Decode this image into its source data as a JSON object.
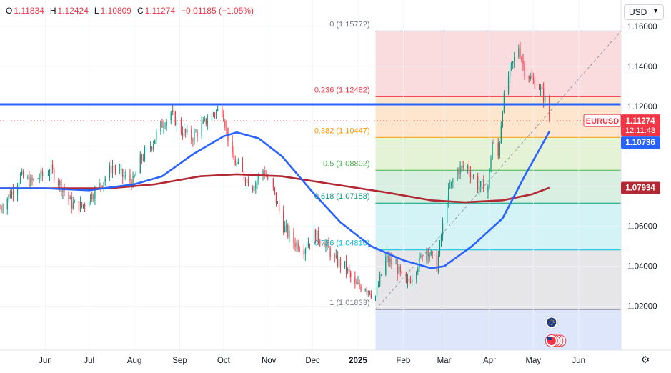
{
  "header": {
    "ohlc": [
      {
        "key": "O",
        "value": "1.11834"
      },
      {
        "key": "H",
        "value": "1.12424"
      },
      {
        "key": "L",
        "value": "1.10809"
      },
      {
        "key": "C",
        "value": "1.11274"
      },
      {
        "key": "",
        "value": "−0.01185 (−1.05%)"
      }
    ],
    "currency": "USD",
    "settings_icon": "gear-icon"
  },
  "colors": {
    "up": "#089981",
    "down": "#f23645",
    "ma_fast": "#2962ff",
    "ma_slow": "#b22833",
    "resistance": "#2962ff"
  },
  "chart_data": {
    "type": "candlestick",
    "symbol": "EURUSD",
    "y_ticks": [
      "1.16000",
      "1.14000",
      "1.12000",
      "1.10000",
      "1.08000",
      "1.06000",
      "1.04000",
      "1.02000"
    ],
    "y_tick_values": [
      1.16,
      1.14,
      1.12,
      1.1,
      1.08,
      1.06,
      1.04,
      1.02
    ],
    "ylim": [
      0.998,
      1.1625
    ],
    "x_ticks": [
      {
        "label": "Jun",
        "date": "2024-06-01",
        "bold": false
      },
      {
        "label": "Jul",
        "date": "2024-07-01",
        "bold": false
      },
      {
        "label": "Aug",
        "date": "2024-08-01",
        "bold": false
      },
      {
        "label": "Sep",
        "date": "2024-09-01",
        "bold": false
      },
      {
        "label": "Oct",
        "date": "2024-10-01",
        "bold": false
      },
      {
        "label": "Nov",
        "date": "2024-11-01",
        "bold": false
      },
      {
        "label": "Dec",
        "date": "2024-12-01",
        "bold": false
      },
      {
        "label": "2025",
        "date": "2025-01-01",
        "bold": true
      },
      {
        "label": "Feb",
        "date": "2025-02-01",
        "bold": false
      },
      {
        "label": "Mar",
        "date": "2025-03-01",
        "bold": false
      },
      {
        "label": "Apr",
        "date": "2025-04-01",
        "bold": false
      },
      {
        "label": "May",
        "date": "2025-05-01",
        "bold": false
      },
      {
        "label": "Jun",
        "date": "2025-06-01",
        "bold": false
      }
    ],
    "xlim": [
      "2024-05-01",
      "2025-06-30"
    ],
    "closes": [
      [
        "2024-05-01",
        1.069
      ],
      [
        "2024-05-08",
        1.076
      ],
      [
        "2024-05-15",
        1.085
      ],
      [
        "2024-05-22",
        1.082
      ],
      [
        "2024-05-29",
        1.085
      ],
      [
        "2024-06-05",
        1.088
      ],
      [
        "2024-06-12",
        1.08
      ],
      [
        "2024-06-19",
        1.071
      ],
      [
        "2024-06-26",
        1.07
      ],
      [
        "2024-07-03",
        1.076
      ],
      [
        "2024-07-10",
        1.082
      ],
      [
        "2024-07-17",
        1.09
      ],
      [
        "2024-07-24",
        1.085
      ],
      [
        "2024-07-31",
        1.082
      ],
      [
        "2024-08-05",
        1.093
      ],
      [
        "2024-08-12",
        1.1
      ],
      [
        "2024-08-19",
        1.11
      ],
      [
        "2024-08-26",
        1.117
      ],
      [
        "2024-09-02",
        1.108
      ],
      [
        "2024-09-09",
        1.104
      ],
      [
        "2024-09-16",
        1.11
      ],
      [
        "2024-09-23",
        1.116
      ],
      [
        "2024-09-30",
        1.119
      ],
      [
        "2024-10-07",
        1.094
      ],
      [
        "2024-10-14",
        1.086
      ],
      [
        "2024-10-21",
        1.08
      ],
      [
        "2024-10-28",
        1.088
      ],
      [
        "2024-11-04",
        1.078
      ],
      [
        "2024-11-11",
        1.06
      ],
      [
        "2024-11-18",
        1.052
      ],
      [
        "2024-11-25",
        1.049
      ],
      [
        "2024-12-02",
        1.056
      ],
      [
        "2024-12-09",
        1.052
      ],
      [
        "2024-12-16",
        1.043
      ],
      [
        "2024-12-23",
        1.04
      ],
      [
        "2024-12-30",
        1.03
      ],
      [
        "2025-01-06",
        1.03
      ],
      [
        "2025-01-13",
        1.025
      ],
      [
        "2025-01-20",
        1.044
      ],
      [
        "2025-01-27",
        1.04
      ],
      [
        "2025-02-03",
        1.03
      ],
      [
        "2025-02-10",
        1.04
      ],
      [
        "2025-02-17",
        1.049
      ],
      [
        "2025-02-24",
        1.04
      ],
      [
        "2025-03-03",
        1.075
      ],
      [
        "2025-03-10",
        1.088
      ],
      [
        "2025-03-17",
        1.09
      ],
      [
        "2025-03-24",
        1.08
      ],
      [
        "2025-03-31",
        1.08
      ],
      [
        "2025-04-03",
        1.102
      ],
      [
        "2025-04-07",
        1.095
      ],
      [
        "2025-04-10",
        1.12
      ],
      [
        "2025-04-14",
        1.135
      ],
      [
        "2025-04-21",
        1.15
      ],
      [
        "2025-04-25",
        1.138
      ],
      [
        "2025-04-30",
        1.133
      ],
      [
        "2025-05-05",
        1.13
      ],
      [
        "2025-05-09",
        1.123
      ],
      [
        "2025-05-12",
        1.113
      ]
    ],
    "ma_fast": [
      [
        "2024-05-01",
        1.079
      ],
      [
        "2024-06-01",
        1.079
      ],
      [
        "2024-07-01",
        1.078
      ],
      [
        "2024-08-01",
        1.081
      ],
      [
        "2024-08-20",
        1.085
      ],
      [
        "2024-09-10",
        1.096
      ],
      [
        "2024-10-01",
        1.105
      ],
      [
        "2024-10-10",
        1.107
      ],
      [
        "2024-10-25",
        1.104
      ],
      [
        "2024-11-10",
        1.095
      ],
      [
        "2024-12-01",
        1.077
      ],
      [
        "2024-12-20",
        1.062
      ],
      [
        "2025-01-10",
        1.05
      ],
      [
        "2025-02-01",
        1.043
      ],
      [
        "2025-02-20",
        1.039
      ],
      [
        "2025-03-01",
        1.04
      ],
      [
        "2025-03-20",
        1.05
      ],
      [
        "2025-04-10",
        1.064
      ],
      [
        "2025-04-25",
        1.085
      ],
      [
        "2025-05-12",
        1.1074
      ]
    ],
    "ma_slow": [
      [
        "2024-05-01",
        1.079
      ],
      [
        "2024-06-01",
        1.079
      ],
      [
        "2024-07-15",
        1.079
      ],
      [
        "2024-08-15",
        1.081
      ],
      [
        "2024-09-15",
        1.085
      ],
      [
        "2024-10-10",
        1.086
      ],
      [
        "2024-11-10",
        1.085
      ],
      [
        "2024-12-15",
        1.081
      ],
      [
        "2025-01-20",
        1.077
      ],
      [
        "2025-02-20",
        1.073
      ],
      [
        "2025-03-15",
        1.072
      ],
      [
        "2025-04-10",
        1.073
      ],
      [
        "2025-04-30",
        1.076
      ],
      [
        "2025-05-12",
        1.0793
      ]
    ],
    "resistance": 1.121,
    "fibonacci": {
      "start_date": "2025-01-13",
      "end_date": "2025-06-30",
      "levels": [
        {
          "label": "0 (1.15772)",
          "price": 1.15772,
          "color": "#787b86",
          "fill": "#fadbde"
        },
        {
          "label": "0.236 (1.12482)",
          "price": 1.12482,
          "color": "#f23645",
          "fill": "#fde6cd"
        },
        {
          "label": "0.382 (1.10447)",
          "price": 1.10447,
          "color": "#ff9800",
          "fill": "#e4f2d5"
        },
        {
          "label": "0.5 (1.08802)",
          "price": 1.08802,
          "color": "#4caf50",
          "fill": "#d9efe2"
        },
        {
          "label": "0.618 (1.07158)",
          "price": 1.07158,
          "color": "#089981",
          "fill": "#d3f3f7"
        },
        {
          "label": "0.786 (1.04816)",
          "price": 1.04816,
          "color": "#00bcd4",
          "fill": "#e6e6e9"
        },
        {
          "label": "1 (1.01833)",
          "price": 1.01833,
          "color": "#787b86",
          "fill": "#dde6fb"
        }
      ]
    },
    "price_labels": [
      {
        "name": "EURUSD",
        "price": 1.11274,
        "text": "1.11274",
        "sub": "12:11:43",
        "color": "#f23645"
      },
      {
        "name": "ma-fast",
        "price": 1.10736,
        "text": "1.10736",
        "color": "#2962ff"
      },
      {
        "name": "ma-slow",
        "price": 1.07934,
        "text": "1.07934",
        "color": "#b22833"
      }
    ]
  }
}
